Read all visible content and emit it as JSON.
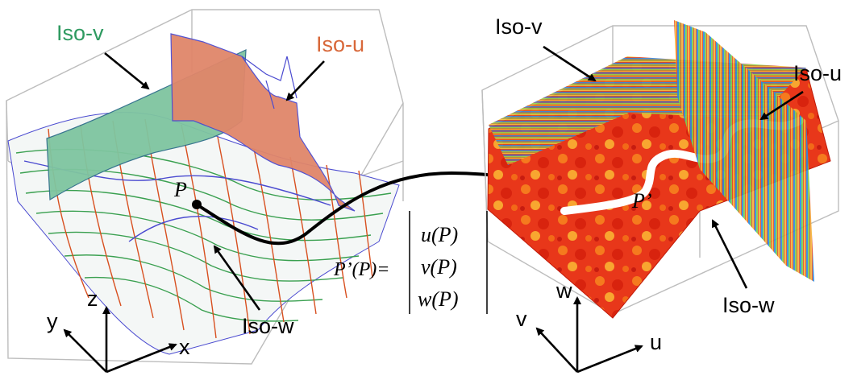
{
  "labels": {
    "left_iso_v": "Iso-v",
    "left_iso_u": "Iso-u",
    "left_iso_w": "Iso-w",
    "right_iso_v": "Iso-v",
    "right_iso_u": "Iso-u",
    "right_iso_w": "Iso-w",
    "point_p": "P",
    "point_p_prime": "P’"
  },
  "axes_left": {
    "x": "x",
    "y": "y",
    "z": "z"
  },
  "axes_right": {
    "u": "u",
    "v": "v",
    "w": "w"
  },
  "formula": {
    "lhs": "P’(P)=",
    "rows": [
      "u(P)",
      "v(P)",
      "w(P)"
    ]
  },
  "colors": {
    "iso_v": "#2e9a60",
    "iso_u": "#d8683a",
    "iso_v_surface": "#7fc5a0",
    "iso_u_surface": "#e0866a",
    "mesh_green": "#3aa050",
    "mesh_red": "#d85020",
    "mesh_blue": "#4a4ad0",
    "box_edge": "#b8b8b8"
  }
}
